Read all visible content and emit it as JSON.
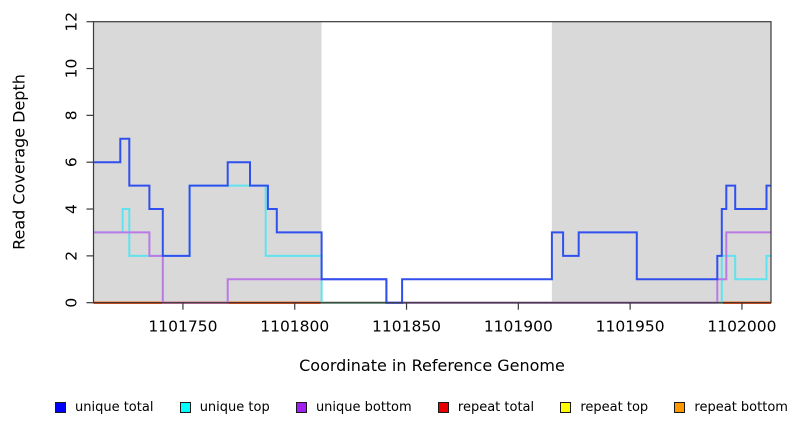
{
  "chart_data": {
    "type": "line",
    "subtype": "step",
    "title": "",
    "xlabel": "Coordinate in Reference Genome",
    "ylabel": "Read Coverage Depth",
    "xlim": [
      1101710,
      1102013
    ],
    "ylim": [
      0,
      12
    ],
    "xticks": [
      1101750,
      1101800,
      1101850,
      1101900,
      1101950,
      1102000
    ],
    "yticks": [
      0,
      2,
      4,
      6,
      8,
      10,
      12
    ],
    "grid": false,
    "legend_position": "bottom",
    "shaded_region_color": "#d9d9d9",
    "shaded_regions": [
      {
        "x0": 1101710,
        "x1": 1101812
      },
      {
        "x0": 1101915,
        "x1": 1102013
      }
    ],
    "legend": [
      {
        "label": "unique total",
        "color": "#0000ff"
      },
      {
        "label": "unique top",
        "color": "#00ffff"
      },
      {
        "label": "unique bottom",
        "color": "#a020f0"
      },
      {
        "label": "repeat total",
        "color": "#e60000"
      },
      {
        "label": "repeat top",
        "color": "#ffff00"
      },
      {
        "label": "repeat bottom",
        "color": "#ff9800"
      }
    ],
    "series": [
      {
        "name": "repeat-bottom",
        "color": "#ff9800",
        "points": [
          [
            1101710,
            0
          ]
        ]
      },
      {
        "name": "repeat-top",
        "color": "#ffff00",
        "points": [
          [
            1101710,
            0
          ]
        ]
      },
      {
        "name": "repeat-total",
        "color": "#e60000",
        "points": [
          [
            1101710,
            0
          ]
        ]
      },
      {
        "name": "unique-top",
        "color": "#5fe3ef",
        "points": [
          [
            1101710,
            3
          ],
          [
            1101723,
            4
          ],
          [
            1101726,
            2
          ],
          [
            1101753,
            5
          ],
          [
            1101787,
            2
          ],
          [
            1101812,
            0
          ],
          [
            1101991,
            2
          ],
          [
            1101997,
            1
          ],
          [
            1102011,
            2
          ]
        ]
      },
      {
        "name": "unique-bottom",
        "color": "#bb79e6",
        "points": [
          [
            1101710,
            3
          ],
          [
            1101735,
            2
          ],
          [
            1101741,
            0
          ],
          [
            1101770,
            1
          ],
          [
            1101841,
            0
          ],
          [
            1101989,
            1
          ],
          [
            1101993,
            3
          ]
        ]
      },
      {
        "name": "unique-total",
        "color": "#3050ee",
        "points": [
          [
            1101710,
            6
          ],
          [
            1101722,
            7
          ],
          [
            1101726,
            5
          ],
          [
            1101735,
            4
          ],
          [
            1101741,
            2
          ],
          [
            1101753,
            5
          ],
          [
            1101770,
            6
          ],
          [
            1101780,
            5
          ],
          [
            1101788,
            4
          ],
          [
            1101792,
            3
          ],
          [
            1101812,
            1
          ],
          [
            1101841,
            0
          ],
          [
            1101848,
            1
          ],
          [
            1101915,
            3
          ],
          [
            1101920,
            2
          ],
          [
            1101927,
            3
          ],
          [
            1101953,
            1
          ],
          [
            1101989,
            2
          ],
          [
            1101991,
            4
          ],
          [
            1101993,
            5
          ],
          [
            1101997,
            4
          ],
          [
            1102011,
            5
          ]
        ]
      }
    ]
  }
}
